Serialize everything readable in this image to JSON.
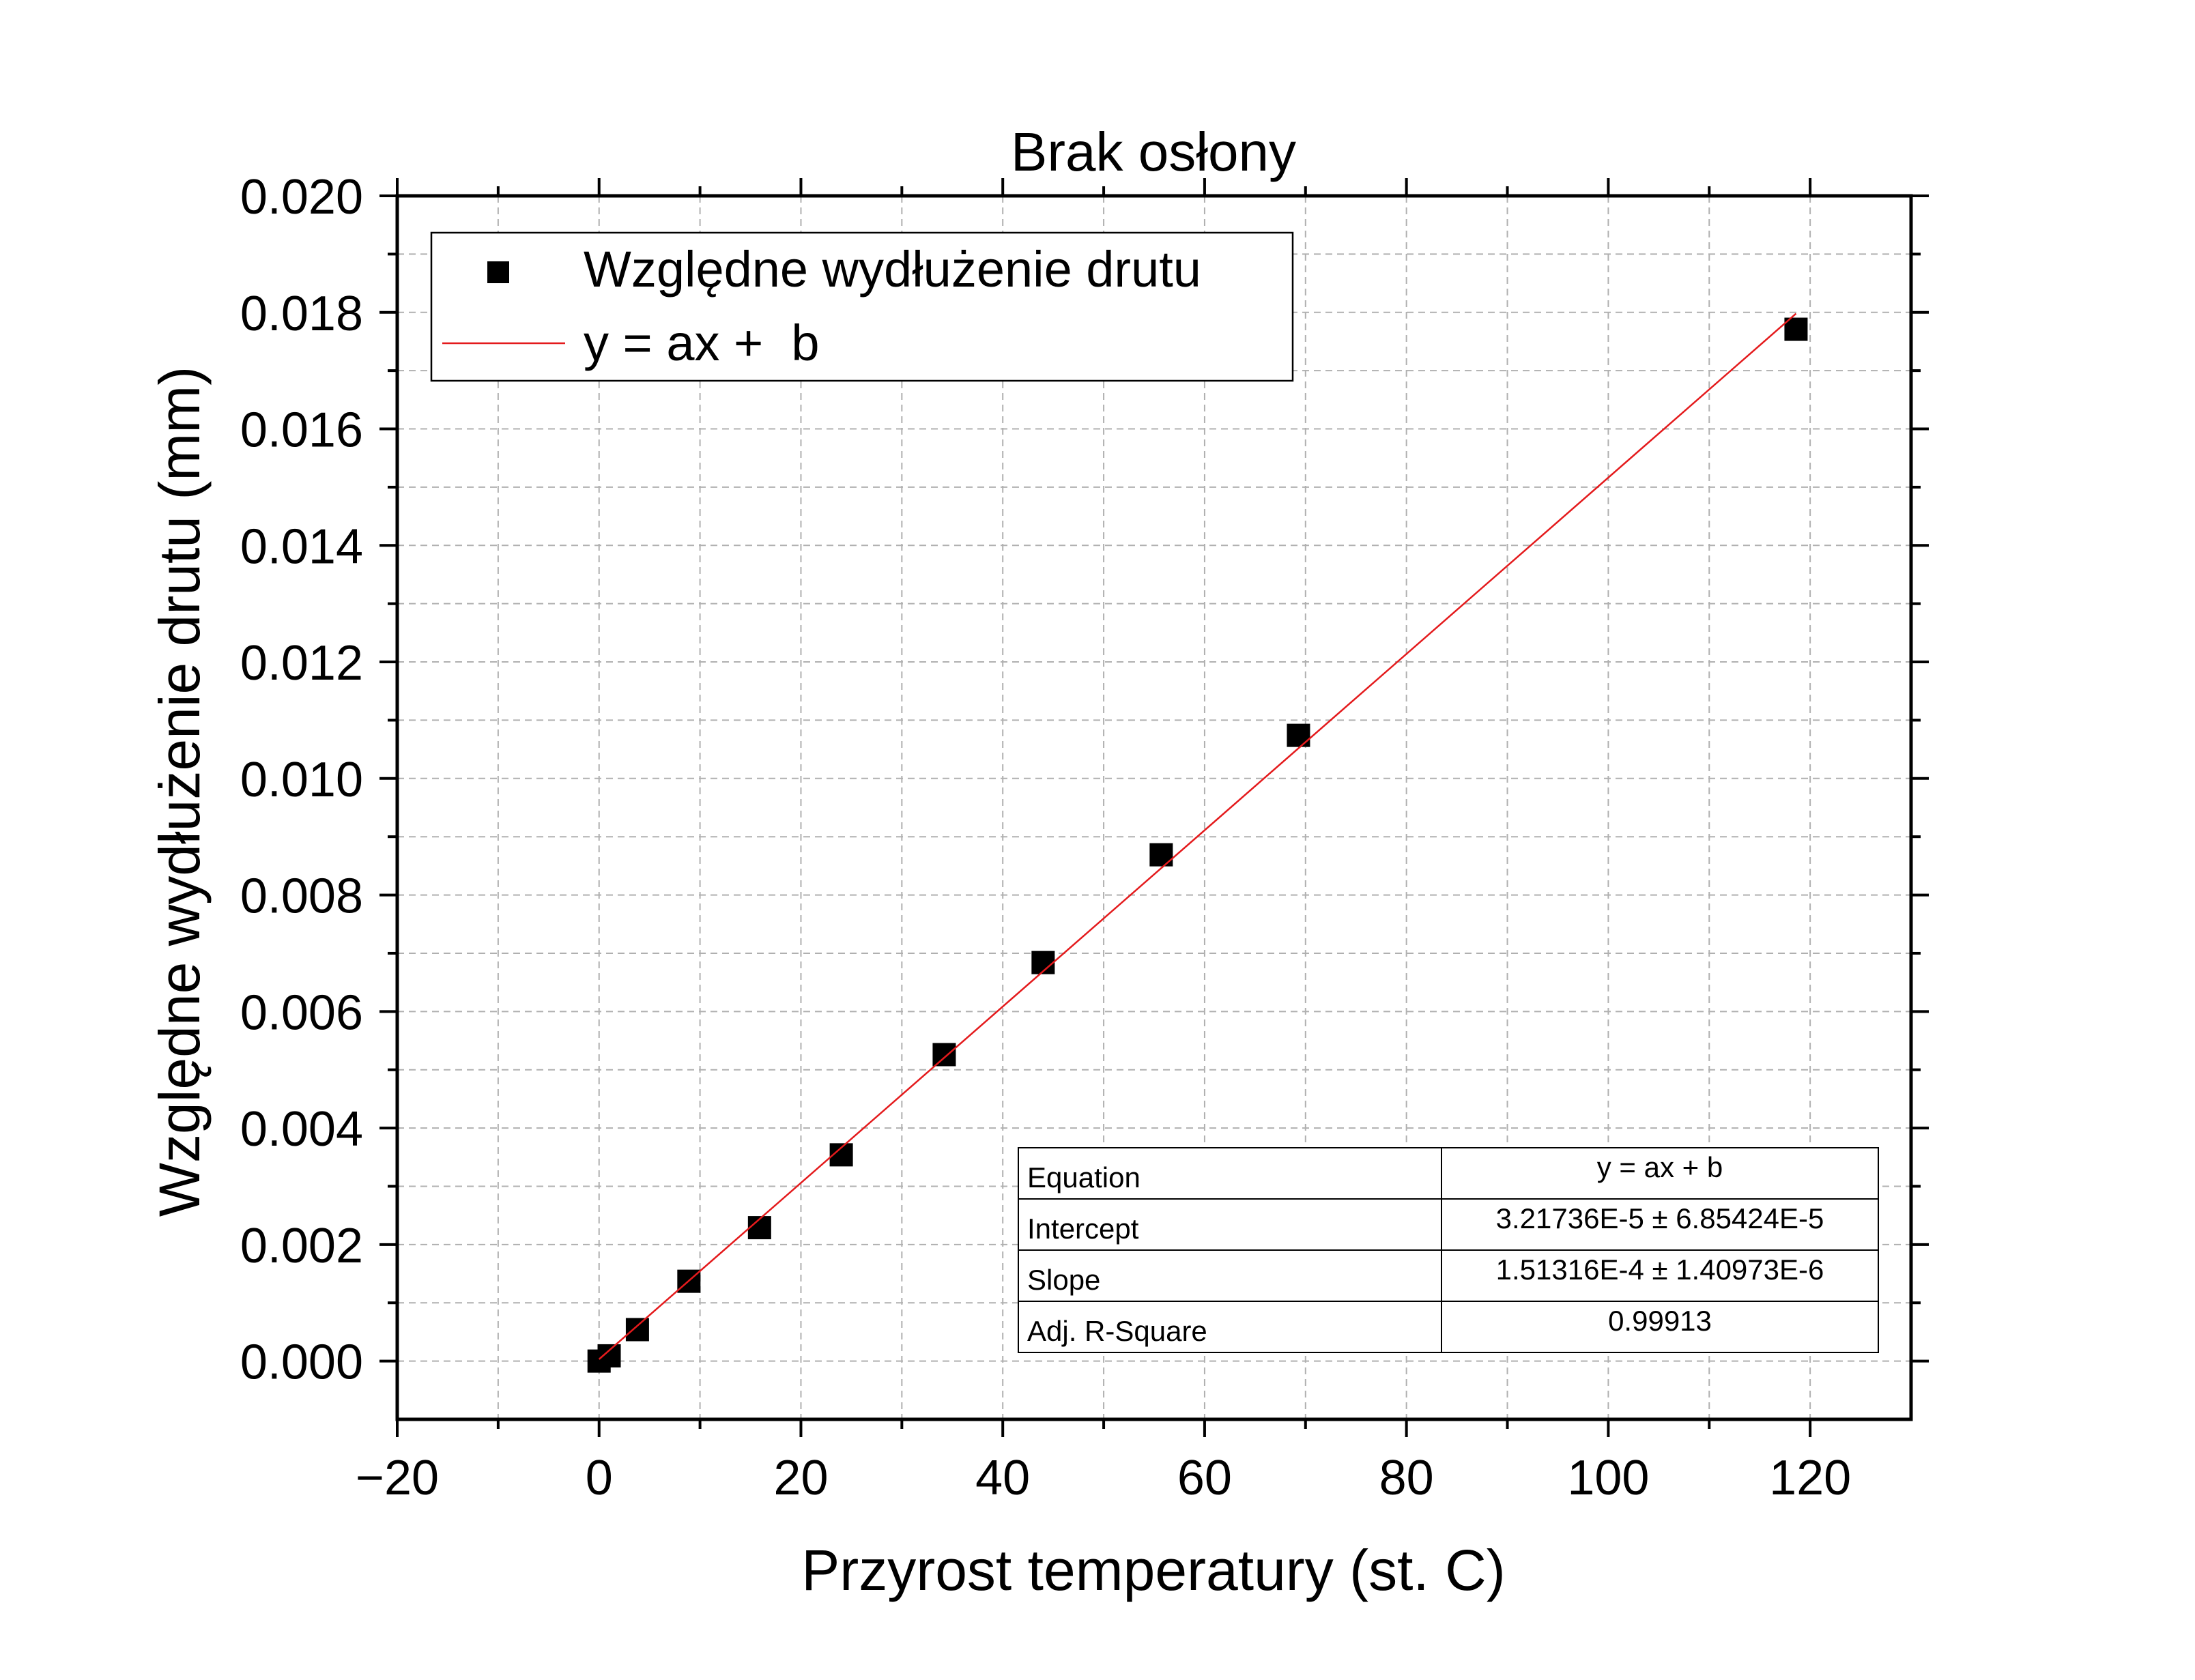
{
  "chart_data": {
    "type": "scatter",
    "title": "Brak osłony",
    "xlabel": "Przyrost temperatury (st. C)",
    "ylabel": "Względne wydłużenie drutu (mm)",
    "xlim": [
      -20,
      130
    ],
    "ylim": [
      -0.001,
      0.02
    ],
    "x_ticks": [
      -20,
      0,
      20,
      40,
      60,
      80,
      100,
      120
    ],
    "x_tick_labels": [
      "−20",
      "0",
      "20",
      "40",
      "60",
      "80",
      "100",
      "120"
    ],
    "y_ticks": [
      0,
      0.002,
      0.004,
      0.006,
      0.008,
      0.01,
      0.012,
      0.014,
      0.016,
      0.018,
      0.02
    ],
    "y_tick_labels": [
      "0.000",
      "0.002",
      "0.004",
      "0.006",
      "0.008",
      "0.010",
      "0.012",
      "0.014",
      "0.016",
      "0.018",
      "0.020"
    ],
    "grid": true,
    "legend_position": "top-left",
    "series": [
      {
        "name": "Względne wydłużenie drutu",
        "kind": "scatter",
        "marker": "square",
        "color": "#000000",
        "x": [
          0.0,
          1.0,
          3.8,
          8.9,
          15.9,
          24.0,
          34.2,
          44.0,
          55.7,
          69.3,
          118.6
        ],
        "y": [
          0.0,
          9e-05,
          0.00054,
          0.00137,
          0.00229,
          0.00354,
          0.00526,
          0.00684,
          0.00869,
          0.01074,
          0.01771
        ]
      },
      {
        "name": "y = ax +  b",
        "kind": "line",
        "color": "#e41a1c",
        "fit": {
          "a": 0.000151316,
          "b": 3.21736e-05
        },
        "x_range": [
          0,
          118.6
        ]
      }
    ],
    "fit_table": [
      {
        "label": "Equation",
        "value": "y = ax + b"
      },
      {
        "label": "Intercept",
        "value": "3.21736E-5 ± 6.85424E-5"
      },
      {
        "label": "Slope",
        "value": "1.51316E-4 ± 1.40973E-6"
      },
      {
        "label": "Adj. R-Square",
        "value": "0.99913"
      }
    ]
  }
}
